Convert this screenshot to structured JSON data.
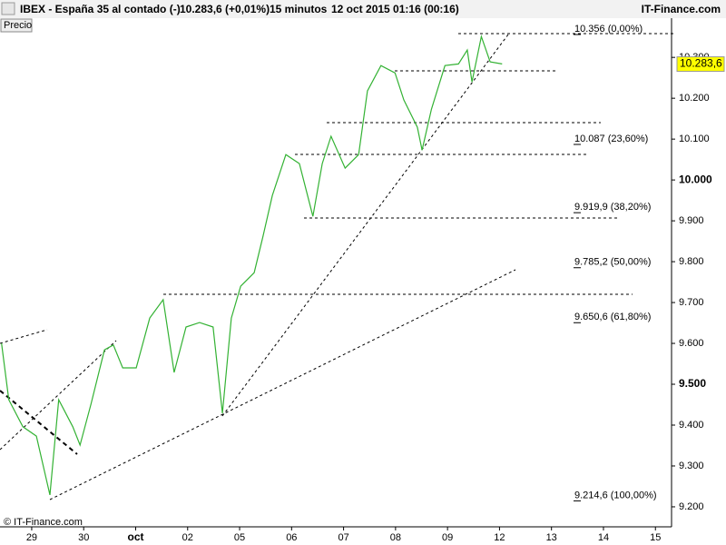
{
  "header": {
    "symbol": "IBEX - España 35 al contado (-)",
    "quote": "10.283,6 (+0,01%)",
    "interval": "15 minutos",
    "datetime": "12 oct 2015 01:16 (00:16)",
    "brand": "IT-Finance.com"
  },
  "footer": "© IT-Finance.com",
  "chart_data": {
    "type": "line",
    "x": [
      -0.58,
      -0.44,
      -0.17,
      0.09,
      0.35,
      0.52,
      0.79,
      0.93,
      1.14,
      1.4,
      1.57,
      1.75,
      2.01,
      2.27,
      2.53,
      2.74,
      2.97,
      3.23,
      3.49,
      3.67,
      3.84,
      4.02,
      4.28,
      4.45,
      4.63,
      4.89,
      5.15,
      5.41,
      5.59,
      5.76,
      6.03,
      6.29,
      6.46,
      6.72,
      6.99,
      7.16,
      7.42,
      7.51,
      7.69,
      7.95,
      8.21,
      8.38,
      8.47,
      8.65,
      8.82,
      9.05
    ],
    "series": [
      {
        "name": "Precio",
        "color": "#33b233",
        "values": [
          9600,
          9462,
          9396,
          9373,
          9229,
          9462,
          9396,
          9351,
          9451,
          9584,
          9596,
          9540,
          9540,
          9662,
          9707,
          9529,
          9640,
          9651,
          9640,
          9429,
          9662,
          9740,
          9773,
          9862,
          9962,
          10062,
          10040,
          9911,
          10040,
          10107,
          10029,
          10062,
          10218,
          10280,
          10262,
          10196,
          10129,
          10073,
          10173,
          10280,
          10284,
          10318,
          10240,
          10351,
          10289,
          10284
        ]
      }
    ],
    "xlim": [
      -0.61,
      12.31
    ],
    "xticks": [
      {
        "value": 0,
        "label": "29"
      },
      {
        "value": 1,
        "label": "30"
      },
      {
        "value": 2,
        "label": "oct"
      },
      {
        "value": 3,
        "label": "02"
      },
      {
        "value": 4,
        "label": "05"
      },
      {
        "value": 5,
        "label": "06"
      },
      {
        "value": 6,
        "label": "07"
      },
      {
        "value": 7,
        "label": "08"
      },
      {
        "value": 8,
        "label": "09"
      },
      {
        "value": 9,
        "label": "12"
      },
      {
        "value": 10,
        "label": "13"
      },
      {
        "value": 11,
        "label": "14"
      },
      {
        "value": 12,
        "label": "15"
      }
    ],
    "ylim": [
      9151,
      10396
    ],
    "yticks": [
      {
        "value": 9200,
        "label": "9.200"
      },
      {
        "value": 9300,
        "label": "9.300"
      },
      {
        "value": 9400,
        "label": "9.400"
      },
      {
        "value": 9500,
        "label": "9.500"
      },
      {
        "value": 9600,
        "label": "9.600"
      },
      {
        "value": 9700,
        "label": "9.700"
      },
      {
        "value": 9800,
        "label": "9.800"
      },
      {
        "value": 9900,
        "label": "9.900"
      },
      {
        "value": 10000,
        "label": "10.000"
      },
      {
        "value": 10100,
        "label": "10.100"
      },
      {
        "value": 10200,
        "label": "10.200"
      },
      {
        "value": 10300,
        "label": "10.300"
      }
    ],
    "fibonacci": [
      {
        "value": 10356,
        "label": "10.356 (0,00%)"
      },
      {
        "value": 10087,
        "label": "10.087 (23,60%)"
      },
      {
        "value": 9919.9,
        "label": "9.919,9 (38,20%)"
      },
      {
        "value": 9785.2,
        "label": "9.785,2 (50,00%)"
      },
      {
        "value": 9650.6,
        "label": "9.650,6 (61,80%)"
      },
      {
        "value": 9214.6,
        "label": "9.214,6 (100,00%)"
      }
    ],
    "last_price": {
      "value": 10283.6,
      "label": "10.283,6"
    }
  }
}
